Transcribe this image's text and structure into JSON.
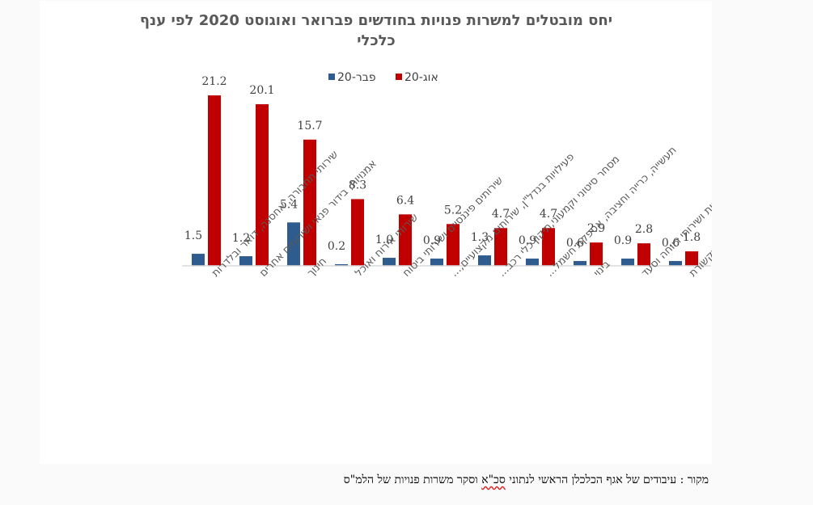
{
  "chart_data": {
    "type": "bar",
    "title": "יחס מובטלים למשרות פנויות בחודשים פברואר ואוגוסט 2020 לפי ענף כלכלי",
    "title_lines": [
      "יחס מובטלים למשרות פנויות בחודשים פברואר ואוגוסט 2020 לפי ענף",
      "כלכלי"
    ],
    "xlabel": "",
    "ylabel": "",
    "ylim": [
      0,
      22
    ],
    "grid": false,
    "legend_position": "top",
    "categories": [
      "שירותי תחבורה, אחסנה, דואר ובלדרות",
      "אמנויות, בידור פנאי ושירותים אחרים",
      "חינוך",
      "שירותי אירוח ואוכל",
      "שירותים פיננסיים ושירותי ביטוח",
      "פעילויות בנדל\"ן, שירותים מקצועיים,...",
      "מסחר סיטוני וקמעוני,תיקון כלי רכב...",
      "תעשייה, כרייה וחציבה, אספקת חשמל...",
      "בינוי",
      "שירותי בריאות ושירותי רווחה וסעד",
      "מידע ותקשורת"
    ],
    "series": [
      {
        "name": "פבר-20",
        "color": "#2f5c8f",
        "values": [
          1.5,
          1.2,
          5.4,
          0.2,
          1.0,
          0.9,
          1.3,
          0.9,
          0.6,
          0.9,
          0.6
        ],
        "labels": [
          "1.5",
          "1.2",
          "5.4",
          "0.2",
          "1.0",
          "0.9",
          "1.3",
          "0.9",
          "0.6",
          "0.9",
          "0.6"
        ]
      },
      {
        "name": "אוג-20",
        "color": "#c00000",
        "values": [
          21.2,
          20.1,
          15.7,
          8.3,
          6.4,
          5.2,
          4.7,
          4.7,
          2.9,
          2.8,
          1.8
        ],
        "labels": [
          "21.2",
          "20.1",
          "15.7",
          "8.3",
          "6.4",
          "5.2",
          "4.7",
          "4.7",
          "2.9",
          "2.8",
          "1.8"
        ]
      }
    ]
  },
  "source": {
    "prefix": "מקור : עיבודים של אגף הכלכלן הראשי לנתוני ",
    "flagged": "סכ\"א",
    "suffix": " וסקר משרות פנויות של הלמ\"ס"
  }
}
